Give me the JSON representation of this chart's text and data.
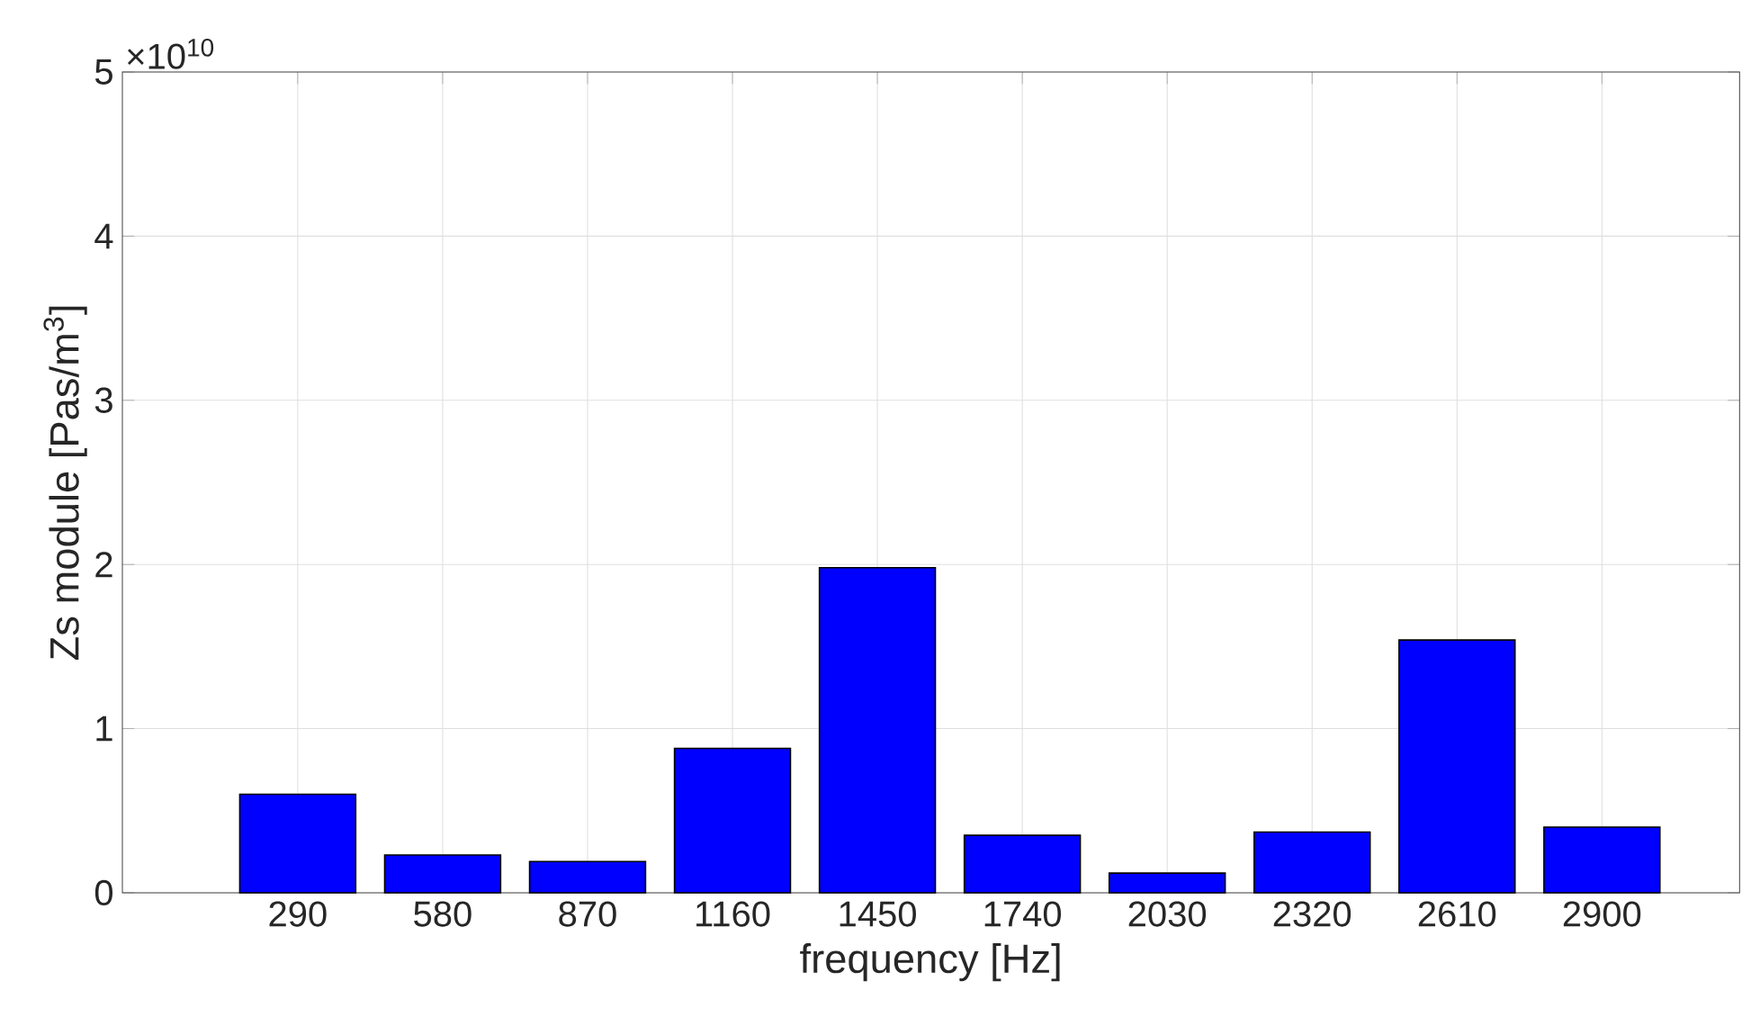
{
  "chart_data": {
    "type": "bar",
    "xlabel": "frequency [Hz]",
    "ylabel": "Zs module [Pas/m$^{3}$]",
    "categories": [
      "290",
      "580",
      "870",
      "1160",
      "1450",
      "1740",
      "2030",
      "2320",
      "2610",
      "2900"
    ],
    "values": [
      0.6,
      0.23,
      0.19,
      0.88,
      1.98,
      0.35,
      0.12,
      0.37,
      1.54,
      0.4
    ],
    "color": "#0000ff",
    "ylim": [
      0,
      5
    ],
    "yticks": [
      0,
      1,
      2,
      3,
      4,
      5
    ],
    "annotations": [
      "×10$^{10}$"
    ],
    "grid": true
  }
}
